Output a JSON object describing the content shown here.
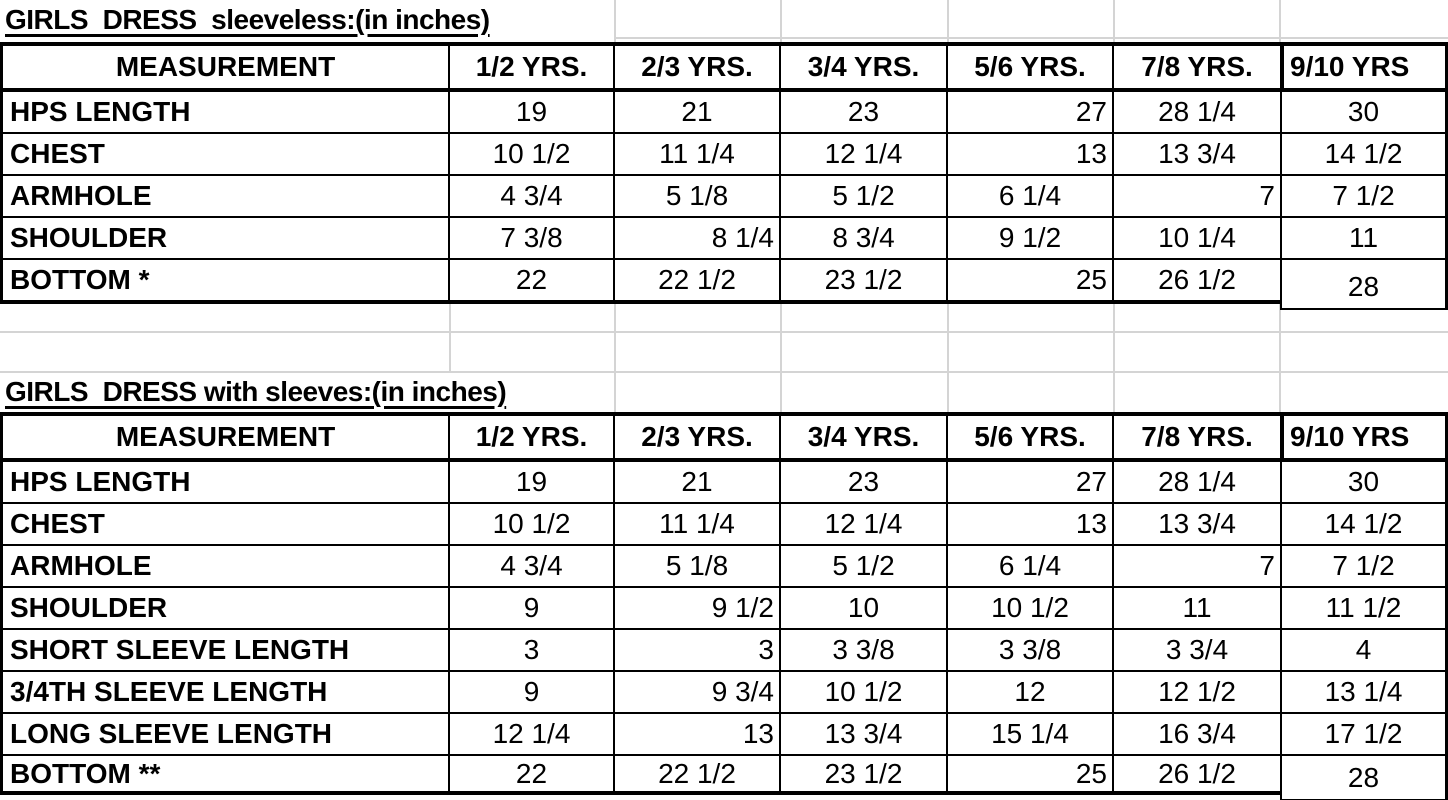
{
  "colors": {
    "text": "#000000",
    "table_border": "#000000",
    "gridline": "#d4d4d4",
    "background": "#ffffff"
  },
  "column_headers": [
    "MEASUREMENT",
    "1/2 YRS.",
    "2/3 YRS.",
    "3/4 YRS.",
    "5/6 YRS.",
    "7/8 YRS.",
    "9/10 YRS"
  ],
  "tables": [
    {
      "title": "GIRLS  DRESS  sleeveless:(in inches)",
      "rows": [
        {
          "label": "HPS LENGTH",
          "values": [
            "19",
            "21",
            "23",
            "27",
            "28 1/4",
            "30"
          ],
          "align": [
            "c",
            "c",
            "c",
            "r",
            "c",
            "c"
          ]
        },
        {
          "label": "CHEST",
          "values": [
            "10 1/2",
            "11 1/4",
            "12 1/4",
            "13",
            "13 3/4",
            "14 1/2"
          ],
          "align": [
            "c",
            "c",
            "c",
            "r",
            "c",
            "c"
          ]
        },
        {
          "label": "ARMHOLE",
          "values": [
            "4 3/4",
            "5 1/8",
            "5 1/2",
            "6 1/4",
            "7",
            "7 1/2"
          ],
          "align": [
            "c",
            "c",
            "c",
            "c",
            "r",
            "c"
          ]
        },
        {
          "label": "SHOULDER",
          "values": [
            "7 3/8",
            "8 1/4",
            "8 3/4",
            "9 1/2",
            "10 1/4",
            "11"
          ],
          "align": [
            "c",
            "r",
            "c",
            "c",
            "c",
            "c"
          ]
        },
        {
          "label": "BOTTOM *",
          "values": [
            "22",
            "22 1/2",
            "23 1/2",
            "25",
            "26 1/2",
            "28"
          ],
          "align": [
            "c",
            "c",
            "c",
            "r",
            "c",
            "cb"
          ]
        }
      ]
    },
    {
      "title": "GIRLS  DRESS with sleeves:(in inches)",
      "rows": [
        {
          "label": "HPS LENGTH",
          "values": [
            "19",
            "21",
            "23",
            "27",
            "28 1/4",
            "30"
          ],
          "align": [
            "c",
            "c",
            "c",
            "r",
            "c",
            "c"
          ]
        },
        {
          "label": "CHEST",
          "values": [
            "10 1/2",
            "11 1/4",
            "12 1/4",
            "13",
            "13 3/4",
            "14 1/2"
          ],
          "align": [
            "c",
            "c",
            "c",
            "r",
            "c",
            "c"
          ]
        },
        {
          "label": "ARMHOLE",
          "values": [
            "4 3/4",
            "5 1/8",
            "5 1/2",
            "6 1/4",
            "7",
            "7 1/2"
          ],
          "align": [
            "c",
            "c",
            "c",
            "c",
            "r",
            "c"
          ]
        },
        {
          "label": "SHOULDER",
          "values": [
            "9",
            "9 1/2",
            "10",
            "10 1/2",
            "11",
            "11 1/2"
          ],
          "align": [
            "c",
            "r",
            "c",
            "c",
            "c",
            "c"
          ]
        },
        {
          "label": "SHORT SLEEVE LENGTH",
          "values": [
            "3",
            "3",
            "3 3/8",
            "3 3/8",
            "3 3/4",
            "4"
          ],
          "align": [
            "c",
            "r",
            "c",
            "c",
            "c",
            "c"
          ]
        },
        {
          "label": "3/4TH SLEEVE LENGTH",
          "values": [
            "9",
            "9 3/4",
            "10 1/2",
            "12",
            "12 1/2",
            "13 1/4"
          ],
          "align": [
            "c",
            "r",
            "c",
            "c",
            "c",
            "c"
          ]
        },
        {
          "label": "LONG SLEEVE LENGTH",
          "values": [
            "12 1/4",
            "13",
            "13 3/4",
            "15 1/4",
            "16 3/4",
            "17 1/2"
          ],
          "align": [
            "c",
            "r",
            "c",
            "c",
            "c",
            "c"
          ]
        },
        {
          "label": "BOTTOM **",
          "values": [
            "22",
            "22 1/2",
            "23 1/2",
            "25",
            "26 1/2",
            "28"
          ],
          "align": [
            "c",
            "c",
            "c",
            "r",
            "c",
            "cb"
          ]
        }
      ]
    }
  ]
}
